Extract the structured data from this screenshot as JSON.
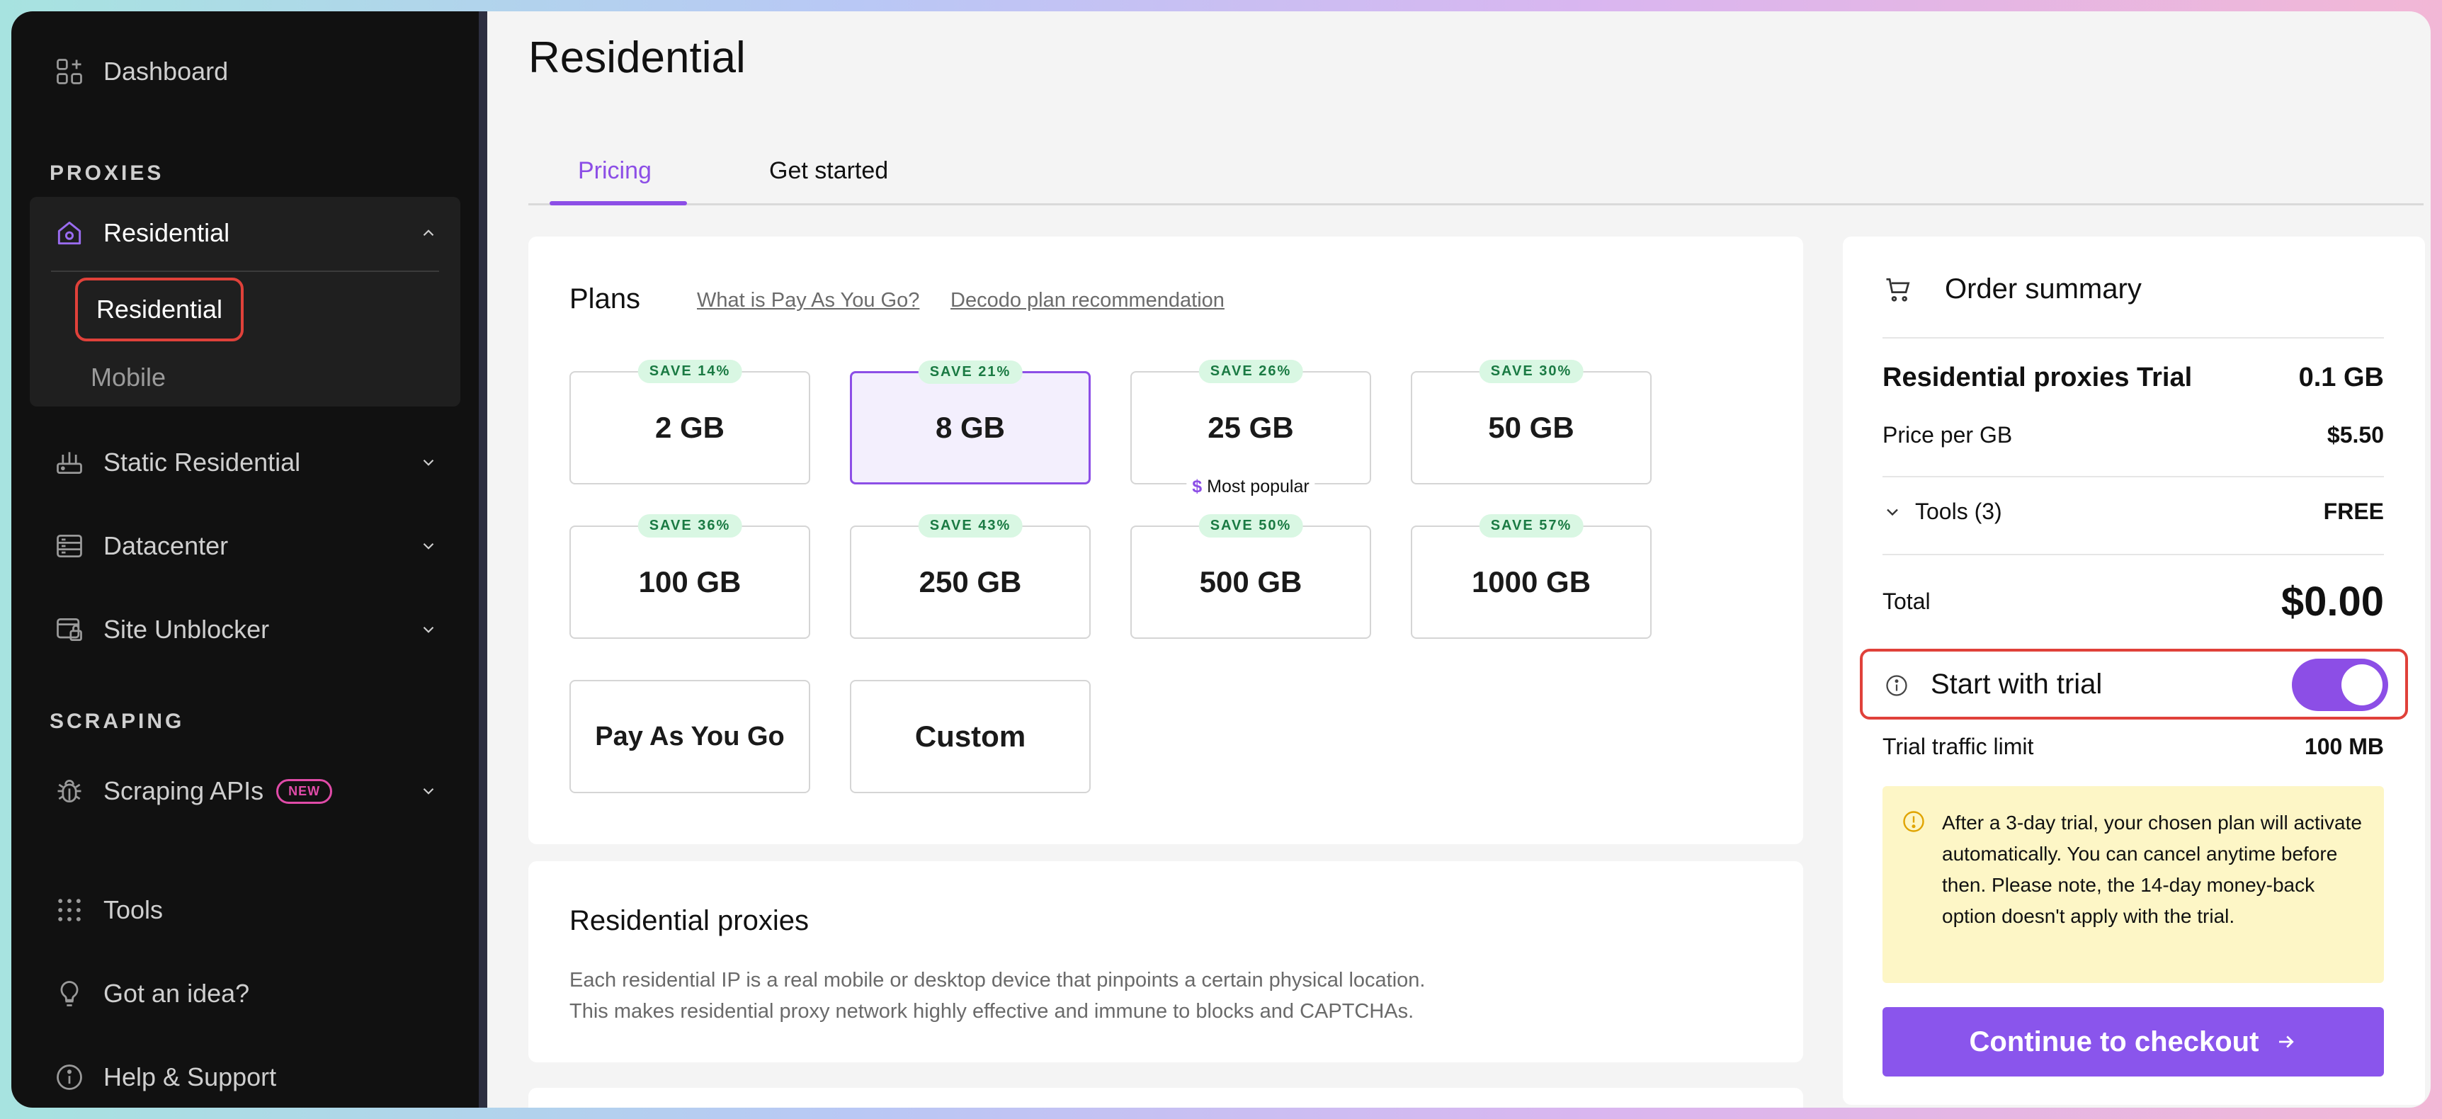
{
  "sidebar": {
    "dashboard": "Dashboard",
    "proxies_label": "PROXIES",
    "residential_group": "Residential",
    "sub_residential": "Residential",
    "sub_mobile": "Mobile",
    "static_residential": "Static Residential",
    "datacenter": "Datacenter",
    "site_unblocker": "Site Unblocker",
    "scraping_label": "SCRAPING",
    "scraping_apis": "Scraping APIs",
    "new_badge": "NEW",
    "tools": "Tools",
    "got_idea": "Got an idea?",
    "help": "Help & Support"
  },
  "page": {
    "title": "Residential",
    "tabs": [
      "Pricing",
      "Get started"
    ]
  },
  "plans": {
    "heading": "Plans",
    "link_payg": "What is Pay As You Go?",
    "link_reco": "Decodo plan recommendation",
    "items": [
      {
        "label": "2 GB",
        "save": "SAVE 14%"
      },
      {
        "label": "8 GB",
        "save": "SAVE 21%"
      },
      {
        "label": "25 GB",
        "save": "SAVE 26%"
      },
      {
        "label": "50 GB",
        "save": "SAVE 30%"
      },
      {
        "label": "100 GB",
        "save": "SAVE 36%"
      },
      {
        "label": "250 GB",
        "save": "SAVE 43%"
      },
      {
        "label": "500 GB",
        "save": "SAVE 50%"
      },
      {
        "label": "1000 GB",
        "save": "SAVE 57%"
      },
      {
        "label": "Pay As You Go"
      },
      {
        "label": "Custom"
      }
    ],
    "most_popular": "Most popular",
    "dollar": "$"
  },
  "info": {
    "title": "Residential proxies",
    "line1": "Each residential IP is a real mobile or desktop device that pinpoints a certain physical location.",
    "line2": "This makes residential proxy network highly effective and immune to blocks and CAPTCHAs."
  },
  "order": {
    "title": "Order summary",
    "product": "Residential proxies Trial",
    "product_qty": "0.1 GB",
    "price_label": "Price per GB",
    "price_value": "$5.50",
    "tools_label": "Tools (3)",
    "tools_value": "FREE",
    "total_label": "Total",
    "total_value": "$0.00",
    "trial_label": "Start with trial",
    "trial_limit_label": "Trial traffic limit",
    "trial_limit_value": "100 MB",
    "warning": "After a 3-day trial, your chosen plan will activate automatically. You can cancel anytime before then. Please note, the 14-day money-back option doesn't apply with the trial.",
    "checkout": "Continue to checkout"
  },
  "colors": {
    "accent": "#8c4ee6",
    "highlight": "#e0413a",
    "save_bg": "#d9f7e3"
  }
}
